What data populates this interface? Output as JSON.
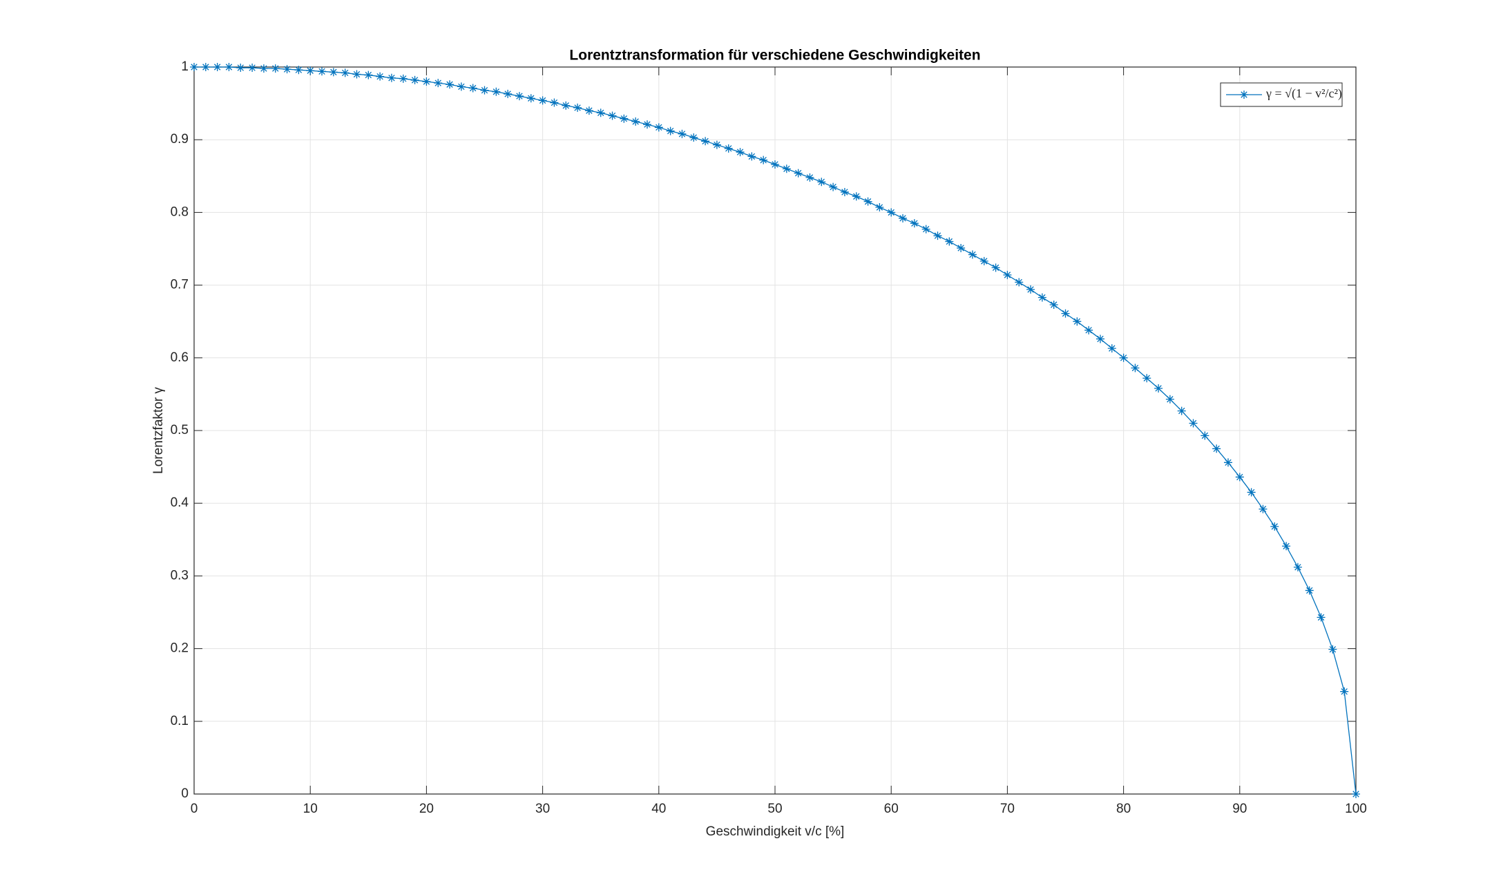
{
  "chart_data": {
    "type": "line",
    "title": "Lorentztransformation für verschiedene Geschwindigkeiten",
    "x_label": "Geschwindigkeit v/c [%]",
    "y_label": "Lorentzfaktor γ",
    "x": [
      0,
      1,
      2,
      3,
      4,
      5,
      6,
      7,
      8,
      9,
      10,
      11,
      12,
      13,
      14,
      15,
      16,
      17,
      18,
      19,
      20,
      21,
      22,
      23,
      24,
      25,
      26,
      27,
      28,
      29,
      30,
      31,
      32,
      33,
      34,
      35,
      36,
      37,
      38,
      39,
      40,
      41,
      42,
      43,
      44,
      45,
      46,
      47,
      48,
      49,
      50,
      51,
      52,
      53,
      54,
      55,
      56,
      57,
      58,
      59,
      60,
      61,
      62,
      63,
      64,
      65,
      66,
      67,
      68,
      69,
      70,
      71,
      72,
      73,
      74,
      75,
      76,
      77,
      78,
      79,
      80,
      81,
      82,
      83,
      84,
      85,
      86,
      87,
      88,
      89,
      90,
      91,
      92,
      93,
      94,
      95,
      96,
      97,
      98,
      99,
      100
    ],
    "series": [
      {
        "name": "γ = √(1 − v²/c²)",
        "color": "#0072bd",
        "values": [
          1,
          1.0,
          1.0,
          1.0,
          0.999,
          0.999,
          0.998,
          0.998,
          0.997,
          0.996,
          0.995,
          0.994,
          0.993,
          0.992,
          0.99,
          0.989,
          0.987,
          0.985,
          0.984,
          0.982,
          0.98,
          0.978,
          0.976,
          0.973,
          0.971,
          0.968,
          0.966,
          0.963,
          0.96,
          0.957,
          0.954,
          0.951,
          0.947,
          0.944,
          0.94,
          0.937,
          0.933,
          0.929,
          0.925,
          0.921,
          0.917,
          0.912,
          0.908,
          0.903,
          0.898,
          0.893,
          0.888,
          0.883,
          0.877,
          0.872,
          0.866,
          0.86,
          0.854,
          0.848,
          0.842,
          0.835,
          0.828,
          0.822,
          0.815,
          0.807,
          0.8,
          0.792,
          0.785,
          0.777,
          0.768,
          0.76,
          0.751,
          0.742,
          0.733,
          0.724,
          0.714,
          0.704,
          0.694,
          0.683,
          0.673,
          0.661,
          0.65,
          0.638,
          0.626,
          0.613,
          0.6,
          0.586,
          0.572,
          0.558,
          0.543,
          0.527,
          0.51,
          0.493,
          0.475,
          0.456,
          0.436,
          0.415,
          0.392,
          0.368,
          0.341,
          0.312,
          0.28,
          0.243,
          0.199,
          0.141,
          0
        ]
      }
    ],
    "xlim": [
      0,
      100
    ],
    "xticks": [
      0,
      10,
      20,
      30,
      40,
      50,
      60,
      70,
      80,
      90,
      100
    ],
    "ylim": [
      0,
      1
    ],
    "yticks": [
      0,
      0.1,
      0.2,
      0.3,
      0.4,
      0.5,
      0.6,
      0.7,
      0.8,
      0.9,
      1
    ],
    "grid": true,
    "legend": "upper right"
  }
}
